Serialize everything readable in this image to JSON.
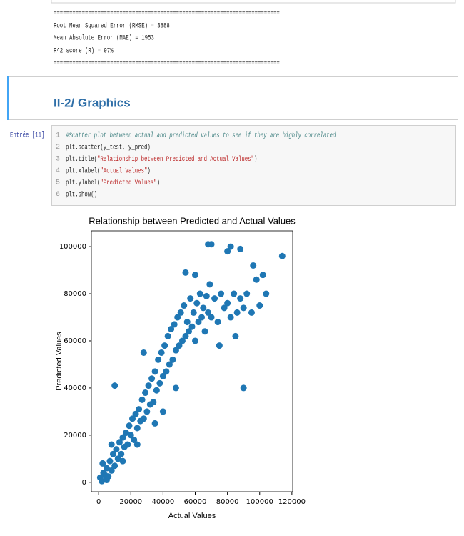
{
  "output": {
    "separators": [
      "========================================================================",
      "========================================================================"
    ],
    "lines": [
      "Root Mean Squared Error (RMSE) = 3888",
      "Mean Absolute Error (MAE) = 1953",
      "R^2 score (R) = 97%"
    ]
  },
  "markdown": {
    "heading": "II-2/ Graphics"
  },
  "code_cell": {
    "prompt": "Entrée [11]:",
    "line_numbers": [
      "1",
      "2",
      "3",
      "4",
      "5",
      "6"
    ],
    "lines": [
      "#Scatter plot between actual and predicted values to see if they are highly correlated",
      "plt.scatter(y_test, y_pred)",
      "plt.title(\"Relationship between Predicted and Actual Values\")",
      "plt.xlabel(\"Actual Values\")",
      "plt.ylabel(\"Predicted Values\")",
      "plt.show()"
    ]
  },
  "chart_data": {
    "type": "scatter",
    "title": "Relationship between Predicted and Actual Values",
    "x_label": "Actual Values",
    "y_label": "Predicted Values",
    "xlim": [
      -4500,
      120500
    ],
    "ylim": [
      -4000,
      106700
    ],
    "xticks": [
      0,
      20000,
      40000,
      60000,
      80000,
      100000,
      120000
    ],
    "yticks": [
      0,
      20000,
      40000,
      60000,
      80000,
      100000
    ],
    "grid": false,
    "series": [
      {
        "name": "y_pred",
        "color": "#1f77b4",
        "x": [
          1000,
          2000,
          3000,
          4000,
          5000,
          2500,
          6000,
          7000,
          8000,
          9000,
          10000,
          11000,
          12000,
          13000,
          14000,
          15000,
          16000,
          17000,
          18000,
          19000,
          20000,
          21000,
          22000,
          23000,
          24000,
          25000,
          26000,
          27000,
          28000,
          29000,
          30000,
          31000,
          32000,
          33000,
          34000,
          35000,
          36000,
          37000,
          38000,
          39000,
          40000,
          41000,
          42000,
          43000,
          44000,
          45000,
          46000,
          47000,
          48000,
          49000,
          50000,
          51000,
          52000,
          53000,
          54000,
          55000,
          56000,
          57000,
          58000,
          59000,
          60000,
          61000,
          62000,
          63000,
          64000,
          65000,
          66000,
          67000,
          68000,
          69000,
          70000,
          72000,
          74000,
          76000,
          78000,
          80000,
          82000,
          84000,
          86000,
          88000,
          90000,
          92000,
          95000,
          98000,
          100000,
          104000,
          114000,
          68000,
          70000,
          82000,
          88000,
          80000,
          54000,
          28000,
          10000,
          90000,
          60000,
          40000,
          24000,
          48000,
          96000,
          102000,
          8000,
          5000,
          15000,
          35000,
          75000,
          85000
        ],
        "values": [
          2000,
          500,
          4000,
          3000,
          6000,
          8000,
          2500,
          9000,
          5000,
          12000,
          7000,
          14000,
          10000,
          17000,
          12000,
          19000,
          15000,
          21000,
          16000,
          24000,
          20000,
          27000,
          18000,
          29000,
          23000,
          31000,
          26000,
          35000,
          27000,
          38000,
          30000,
          41000,
          33000,
          44000,
          34000,
          47000,
          39000,
          52000,
          42000,
          55000,
          45000,
          58000,
          47000,
          62000,
          50000,
          65000,
          52000,
          67000,
          56000,
          70000,
          58000,
          72000,
          60000,
          75000,
          62000,
          68000,
          64000,
          78000,
          66000,
          72000,
          60000,
          76000,
          68000,
          80000,
          70000,
          74000,
          64000,
          79000,
          72000,
          84000,
          70000,
          78000,
          68000,
          80000,
          74000,
          76000,
          70000,
          80000,
          72000,
          78000,
          74000,
          80000,
          72000,
          86000,
          75000,
          80000,
          96000,
          101000,
          101000,
          100000,
          99000,
          98000,
          89000,
          55000,
          41000,
          40000,
          88000,
          30000,
          16000,
          40000,
          92000,
          88000,
          16000,
          1000,
          9000,
          25000,
          58000,
          62000
        ]
      }
    ]
  }
}
